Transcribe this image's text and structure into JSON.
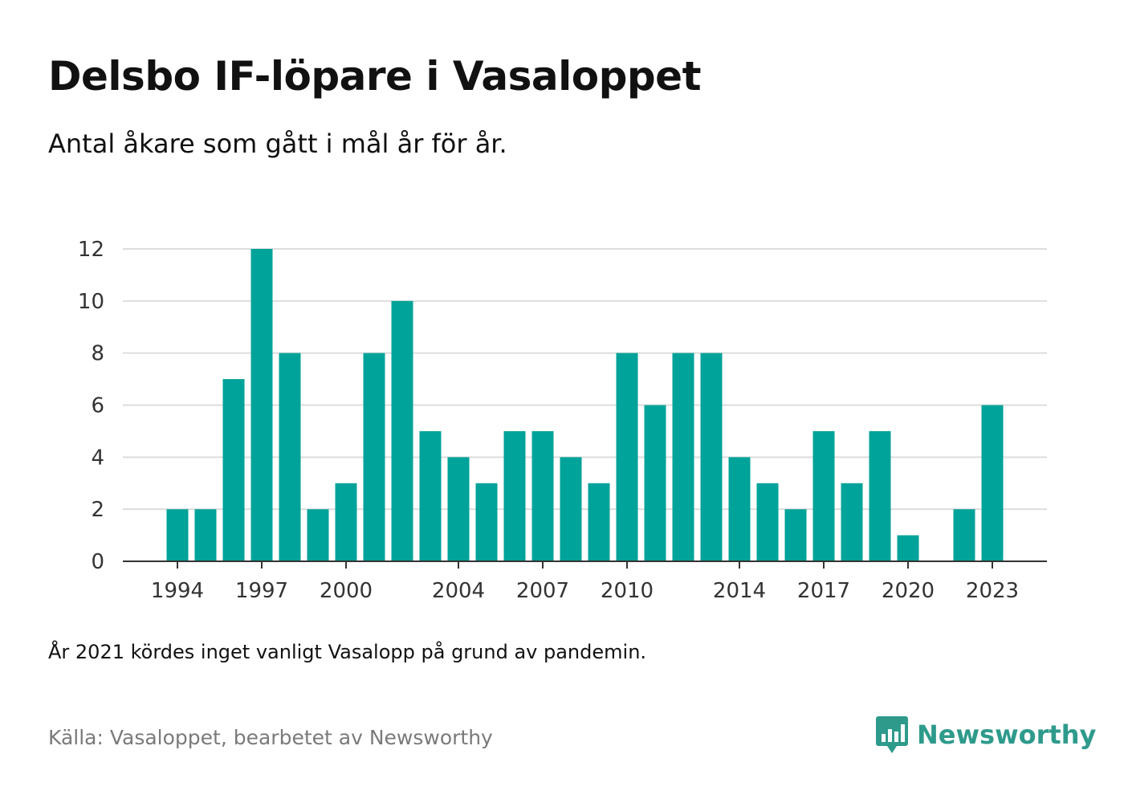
{
  "title": "Delsbo IF-löpare i Vasaloppet",
  "subtitle": "Antal åkare som gått i mål år för år.",
  "note": "År 2021 kördes inget vanligt Vasalopp på grund av pandemin.",
  "source": "Källa: Vasaloppet, bearbetet av Newsworthy",
  "brand": {
    "name": "Newsworthy",
    "icon": "newsworthy-logo-icon",
    "color": "#2e9a8c"
  },
  "colors": {
    "bar": "#00a399",
    "grid": "#dddddd",
    "axis": "#333333"
  },
  "chart_data": {
    "type": "bar",
    "title": "Delsbo IF-löpare i Vasaloppet",
    "xlabel": "",
    "ylabel": "",
    "categories": [
      1994,
      1995,
      1996,
      1997,
      1998,
      1999,
      2000,
      2001,
      2002,
      2003,
      2004,
      2005,
      2006,
      2007,
      2008,
      2009,
      2010,
      2011,
      2012,
      2013,
      2014,
      2015,
      2016,
      2017,
      2018,
      2019,
      2020,
      2021,
      2022,
      2023
    ],
    "values": [
      2,
      2,
      7,
      12,
      8,
      2,
      3,
      8,
      10,
      5,
      4,
      3,
      5,
      5,
      4,
      3,
      8,
      6,
      8,
      8,
      4,
      3,
      2,
      5,
      3,
      5,
      1,
      null,
      2,
      6
    ],
    "ylim": [
      0,
      12
    ],
    "yticks": [
      0,
      2,
      4,
      6,
      8,
      10,
      12
    ],
    "xticks": [
      1994,
      1997,
      2000,
      2004,
      2007,
      2010,
      2014,
      2017,
      2020,
      2023
    ],
    "grid": true,
    "legend": "none"
  }
}
